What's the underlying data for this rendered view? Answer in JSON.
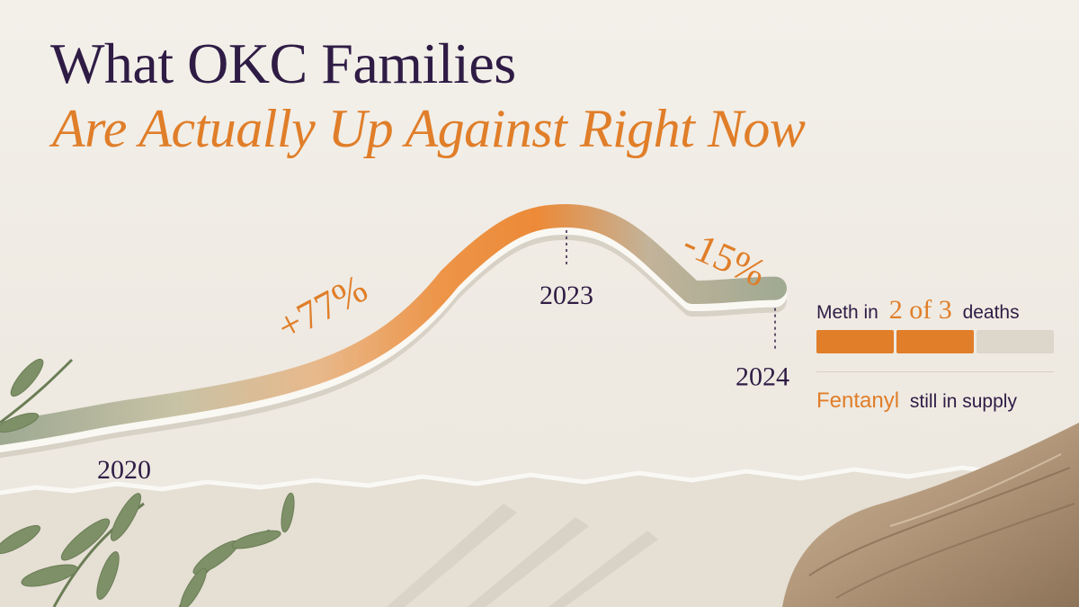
{
  "title": "What OKC Families",
  "subtitle": "Are Actually Up Against Right Now",
  "colors": {
    "title": "#2f1c45",
    "accent": "#e07e29",
    "sage": "#9aa58c",
    "neutral": "#dcd6cb",
    "background": "#efebe4"
  },
  "chart_data": {
    "type": "line",
    "x": [
      "2020",
      "2023",
      "2024"
    ],
    "series": [
      {
        "values": [
          100,
          177,
          150
        ]
      }
    ],
    "annotations": [
      {
        "text": "+77%",
        "between": [
          "2020",
          "2023"
        ]
      },
      {
        "text": "-15%",
        "between": [
          "2023",
          "2024"
        ]
      }
    ],
    "xlabel": "",
    "ylabel": "",
    "grid": false
  },
  "legend": {
    "meth_prefix": "Meth in",
    "meth_highlight": "2 of 3",
    "meth_suffix": "deaths",
    "meth_ratio": {
      "filled": 2,
      "total": 3
    },
    "fentanyl_highlight": "Fentanyl",
    "fentanyl_suffix": "still in supply"
  }
}
